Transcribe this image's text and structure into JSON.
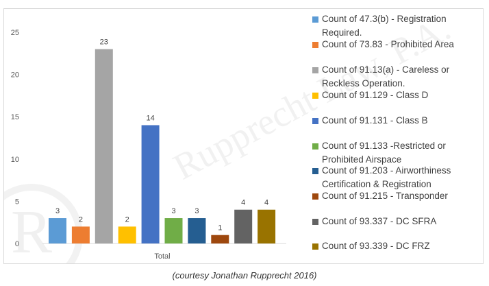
{
  "chart_data": {
    "type": "bar",
    "categories": [
      "Total"
    ],
    "ylim": [
      0,
      25
    ],
    "yticks": [
      0,
      5,
      10,
      15,
      20,
      25
    ],
    "grid": false,
    "legend_position": "right",
    "series": [
      {
        "name": "Count of 47.3(b) - Registration Required.",
        "values": [
          3
        ],
        "color": "#5b9bd5"
      },
      {
        "name": "Count of 73.83 - Prohibited Area",
        "values": [
          2
        ],
        "color": "#ed7d31"
      },
      {
        "name": "Count of 91.13(a) - Careless or Reckless Operation.",
        "values": [
          23
        ],
        "color": "#a5a5a5"
      },
      {
        "name": "Count of 91.129 - Class D",
        "values": [
          2
        ],
        "color": "#ffc000"
      },
      {
        "name": "Count of 91.131 - Class B",
        "values": [
          14
        ],
        "color": "#4472c4"
      },
      {
        "name": "Count of 91.133 -Restricted or Prohibited Airspace",
        "values": [
          3
        ],
        "color": "#70ad47"
      },
      {
        "name": "Count of 91.203 - Airworthiness Certification & Registration",
        "values": [
          3
        ],
        "color": "#255e91"
      },
      {
        "name": "Count of 91.215 - Transponder",
        "values": [
          1
        ],
        "color": "#9e480e"
      },
      {
        "name": "Count of 93.337 - DC SFRA",
        "values": [
          4
        ],
        "color": "#636363"
      },
      {
        "name": "Count of 93.339 - DC FRZ",
        "values": [
          4
        ],
        "color": "#997300"
      }
    ]
  },
  "watermark": "Rupprecht Law, P.A.",
  "caption": "(courtesy Jonathan Rupprecht 2016)"
}
